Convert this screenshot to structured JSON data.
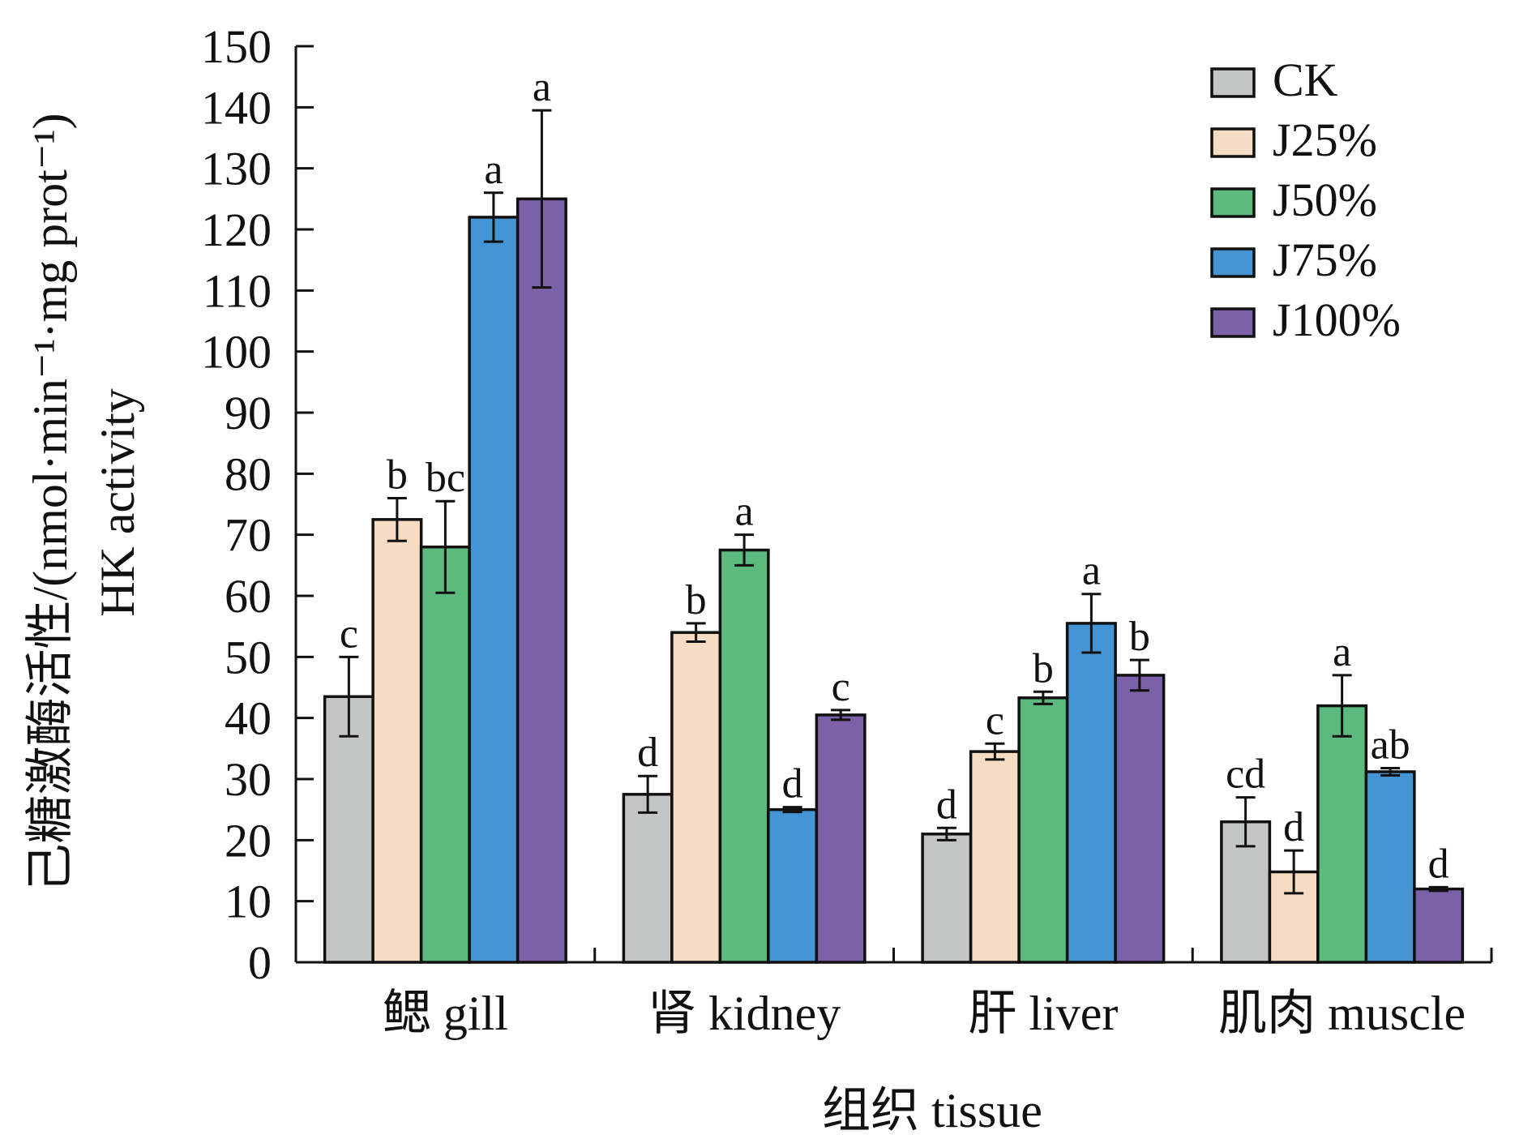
{
  "chart_data": {
    "type": "bar",
    "ylabel_cn": "己糖激酶活性/(nmol·min⁻¹·mg prot⁻¹)",
    "ylabel_en": "HK activity",
    "xlabel": "组织 tissue",
    "ylim": [
      0,
      150
    ],
    "yticks": [
      0,
      10,
      20,
      30,
      40,
      50,
      60,
      70,
      80,
      90,
      100,
      110,
      120,
      130,
      140,
      150
    ],
    "categories": [
      "鳃 gill",
      "肾 kidney",
      "肝 liver",
      "肌肉 muscle"
    ],
    "legend_position": "top-right",
    "grid": false,
    "series": [
      {
        "name": "CK",
        "color": "#c4c6c5",
        "values": [
          43.5,
          27.5,
          21.0,
          23.0
        ],
        "errors": [
          6.5,
          3.0,
          1.0,
          4.0
        ],
        "labels": [
          "c",
          "d",
          "d",
          "cd"
        ]
      },
      {
        "name": "J25%",
        "color": "#f7dcc4",
        "values": [
          72.5,
          54.0,
          34.5,
          14.8
        ],
        "errors": [
          3.5,
          1.5,
          1.3,
          3.5
        ],
        "labels": [
          "b",
          "b",
          "c",
          "d"
        ]
      },
      {
        "name": "J50%",
        "color": "#5cba7f",
        "values": [
          68.0,
          67.5,
          43.3,
          42.0
        ],
        "errors": [
          7.5,
          2.5,
          1.0,
          5.0
        ],
        "labels": [
          "bc",
          "a",
          "b",
          "a"
        ]
      },
      {
        "name": "J75%",
        "color": "#4595d4",
        "values": [
          122.0,
          25.0,
          55.5,
          31.2
        ],
        "errors": [
          4.0,
          0.4,
          4.8,
          0.6
        ],
        "labels": [
          "a",
          "d",
          "a",
          "ab"
        ]
      },
      {
        "name": "J100%",
        "color": "#7b62a8",
        "values": [
          125.0,
          40.5,
          47.0,
          12.0
        ],
        "errors": [
          14.5,
          0.8,
          2.5,
          0.3
        ],
        "labels": [
          "a",
          "c",
          "b",
          "d"
        ]
      }
    ]
  }
}
